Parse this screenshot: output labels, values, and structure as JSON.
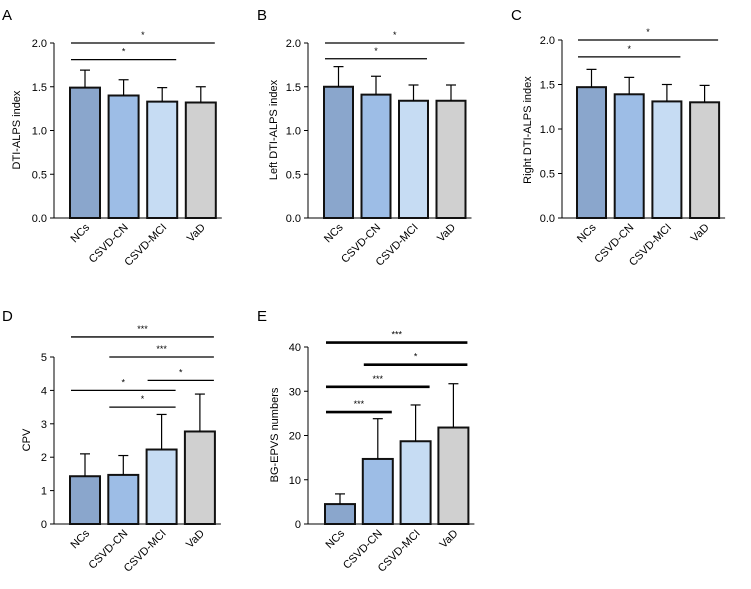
{
  "chart_data": [
    {
      "id": "A",
      "panel_label": "A",
      "type": "bar",
      "ylabel": "DTI-ALPS index",
      "categories": [
        "NCs",
        "CSVD-CN",
        "CSVD-MCI",
        "VaD"
      ],
      "values": [
        1.49,
        1.4,
        1.33,
        1.32
      ],
      "errors": [
        0.2,
        0.18,
        0.16,
        0.18
      ],
      "ylim": [
        0,
        2.0
      ],
      "yticks": [
        0,
        0.5,
        1.0,
        1.5,
        2.0
      ],
      "ytick_labels": [
        "0.0",
        "0.5",
        "1.0",
        "1.5",
        "2.0"
      ],
      "significance": [
        {
          "from": 0,
          "to": 3,
          "label": "*",
          "y": 2.0
        },
        {
          "from": 0,
          "to": 2,
          "label": "*",
          "y": 1.81
        }
      ]
    },
    {
      "id": "B",
      "panel_label": "B",
      "type": "bar",
      "ylabel": "Left DTI-ALPS index",
      "categories": [
        "NCs",
        "CSVD-CN",
        "CSVD-MCI",
        "VaD"
      ],
      "values": [
        1.5,
        1.41,
        1.34,
        1.34
      ],
      "errors": [
        0.23,
        0.21,
        0.18,
        0.18
      ],
      "ylim": [
        0,
        2.0
      ],
      "yticks": [
        0,
        0.5,
        1.0,
        1.5,
        2.0
      ],
      "ytick_labels": [
        "0.0",
        "0.5",
        "1.0",
        "1.5",
        "2.0"
      ],
      "significance": [
        {
          "from": 0,
          "to": 3,
          "label": "*",
          "y": 2.0
        },
        {
          "from": 0,
          "to": 2,
          "label": "*",
          "y": 1.82
        }
      ]
    },
    {
      "id": "C",
      "panel_label": "C",
      "type": "bar",
      "ylabel": "Right DTI-ALPS index",
      "categories": [
        "NCs",
        "CSVD-CN",
        "CSVD-MCI",
        "VaD"
      ],
      "values": [
        1.47,
        1.39,
        1.31,
        1.3
      ],
      "errors": [
        0.2,
        0.19,
        0.19,
        0.19
      ],
      "ylim": [
        0,
        2.0
      ],
      "yticks": [
        0,
        0.5,
        1.0,
        1.5,
        2.0
      ],
      "ytick_labels": [
        "0.0",
        "0.5",
        "1.0",
        "1.5",
        "2.0"
      ],
      "significance": [
        {
          "from": 0,
          "to": 3,
          "label": "*",
          "y": 2.0
        },
        {
          "from": 0,
          "to": 2,
          "label": "*",
          "y": 1.81
        }
      ]
    },
    {
      "id": "D",
      "panel_label": "D",
      "type": "bar",
      "ylabel": "CPV",
      "categories": [
        "NCs",
        "CSVD-CN",
        "CSVD-MCI",
        "VaD"
      ],
      "values": [
        1.43,
        1.47,
        2.23,
        2.77
      ],
      "errors": [
        0.67,
        0.58,
        1.05,
        1.12
      ],
      "ylim": [
        0,
        5
      ],
      "yticks": [
        0,
        1,
        2,
        3,
        4,
        5
      ],
      "ytick_labels": [
        "0",
        "1",
        "2",
        "3",
        "4",
        "5"
      ],
      "significance": [
        {
          "from": 0,
          "to": 3,
          "label": "***",
          "y": 5.6
        },
        {
          "from": 1,
          "to": 3,
          "label": "***",
          "y": 5.0
        },
        {
          "from": 2,
          "to": 3,
          "label": "*",
          "y": 4.3
        },
        {
          "from": 0,
          "to": 2,
          "label": "*",
          "y": 4.0
        },
        {
          "from": 1,
          "to": 2,
          "label": "*",
          "y": 3.5
        }
      ]
    },
    {
      "id": "E",
      "panel_label": "E",
      "type": "bar",
      "ylabel": "BG-EPVS numbers",
      "categories": [
        "NCs",
        "CSVD-CN",
        "CSVD-MCI",
        "VaD"
      ],
      "values": [
        4.5,
        14.7,
        18.7,
        21.8
      ],
      "errors": [
        2.3,
        9.1,
        8.2,
        9.9
      ],
      "ylim": [
        0,
        40
      ],
      "yticks": [
        0,
        10,
        20,
        30,
        40
      ],
      "ytick_labels": [
        "0",
        "10",
        "20",
        "30",
        "40"
      ],
      "significance": [
        {
          "from": 0,
          "to": 3,
          "label": "***",
          "y": 41.0
        },
        {
          "from": 1,
          "to": 3,
          "label": "*",
          "y": 36.0
        },
        {
          "from": 0,
          "to": 2,
          "label": "***",
          "y": 31.0
        },
        {
          "from": 0,
          "to": 1,
          "label": "***",
          "y": 25.3
        }
      ]
    }
  ],
  "colors": {
    "bars": [
      "#8aa6cc",
      "#9dbde6",
      "#c6dcf3",
      "#d0d0d0"
    ],
    "stroke": "#111111"
  }
}
